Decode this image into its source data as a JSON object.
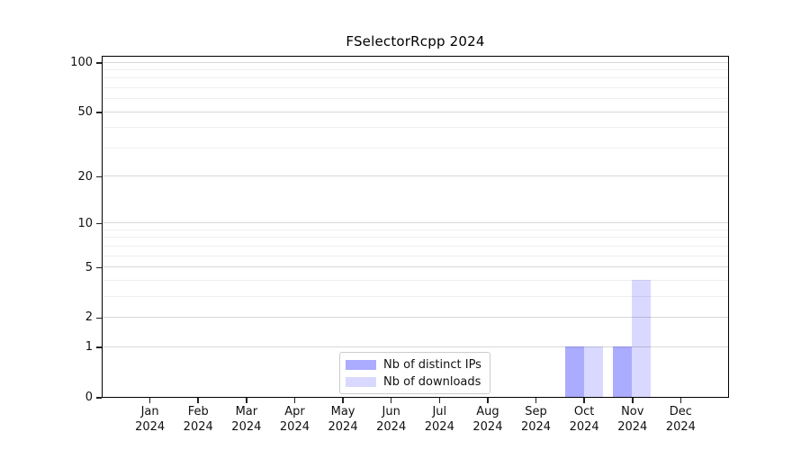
{
  "chart_data": {
    "type": "bar",
    "title": "FSelectorRcpp 2024",
    "xlabel": "",
    "ylabel": "",
    "yscale": "log1p",
    "ylim": [
      0,
      110
    ],
    "grid": true,
    "legend_position": "bottom-center",
    "y_major_ticks": [
      0,
      1,
      2,
      5,
      10,
      20,
      50,
      100
    ],
    "y_minor_gridline_values": [
      3,
      4,
      6,
      7,
      8,
      9,
      30,
      40,
      60,
      70,
      80,
      90
    ],
    "categories": [
      {
        "month": "Jan",
        "year": "2024"
      },
      {
        "month": "Feb",
        "year": "2024"
      },
      {
        "month": "Mar",
        "year": "2024"
      },
      {
        "month": "Apr",
        "year": "2024"
      },
      {
        "month": "May",
        "year": "2024"
      },
      {
        "month": "Jun",
        "year": "2024"
      },
      {
        "month": "Jul",
        "year": "2024"
      },
      {
        "month": "Aug",
        "year": "2024"
      },
      {
        "month": "Sep",
        "year": "2024"
      },
      {
        "month": "Oct",
        "year": "2024"
      },
      {
        "month": "Nov",
        "year": "2024"
      },
      {
        "month": "Dec",
        "year": "2024"
      }
    ],
    "series": [
      {
        "name": "Nb of distinct IPs",
        "fill_rgba": "rgba(0,0,255,0.33)",
        "fill_hex_on_white": "#aaaaff",
        "values": [
          0,
          0,
          0,
          0,
          0,
          0,
          0,
          0,
          0,
          1,
          1,
          0
        ]
      },
      {
        "name": "Nb of downloads",
        "fill_rgba": "rgba(0,0,255,0.15)",
        "fill_hex_on_white": "#d9d9ff",
        "values": [
          0,
          0,
          0,
          0,
          0,
          0,
          0,
          0,
          0,
          1,
          4,
          0
        ]
      }
    ],
    "colors": {
      "spine": "#000000",
      "major_grid": "#d8d8d8",
      "minor_grid": "#efefef",
      "legend_border": "#cccccc",
      "text": "#111111"
    }
  }
}
